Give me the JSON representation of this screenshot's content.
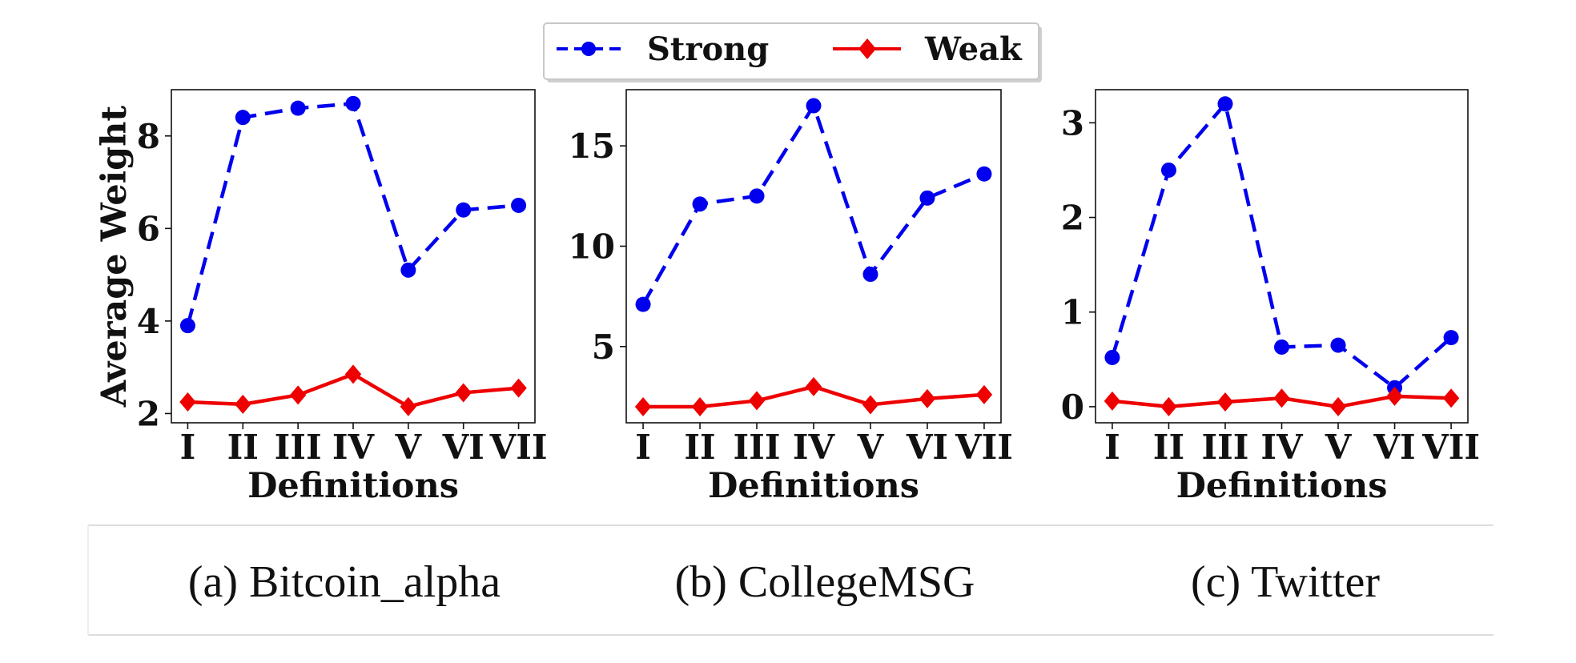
{
  "legend": [
    {
      "name": "Strong",
      "color": "#0000ee",
      "marker": "circle",
      "line": "dashed"
    },
    {
      "name": "Weak",
      "color": "#ee0000",
      "marker": "diamond",
      "line": "solid"
    }
  ],
  "chart_data": [
    {
      "type": "line",
      "caption": "(a) Bitcoin_alpha",
      "xlabel": "Definitions",
      "ylabel": "Average Weight",
      "categories": [
        "I",
        "II",
        "III",
        "IV",
        "V",
        "VI",
        "VII"
      ],
      "ylim": [
        1.8,
        9.0
      ],
      "yticks": [
        2,
        4,
        6,
        8
      ],
      "series": [
        {
          "name": "Strong",
          "values": [
            3.9,
            8.4,
            8.6,
            8.7,
            5.1,
            6.4,
            6.5
          ]
        },
        {
          "name": "Weak",
          "values": [
            2.25,
            2.2,
            2.4,
            2.85,
            2.15,
            2.45,
            2.55
          ]
        }
      ]
    },
    {
      "type": "line",
      "caption": "(b) CollegeMSG",
      "xlabel": "Definitions",
      "ylabel": "",
      "categories": [
        "I",
        "II",
        "III",
        "IV",
        "V",
        "VI",
        "VII"
      ],
      "ylim": [
        1.2,
        17.8
      ],
      "yticks": [
        5,
        10,
        15
      ],
      "series": [
        {
          "name": "Strong",
          "values": [
            7.1,
            12.1,
            12.5,
            17.0,
            8.6,
            12.4,
            13.6
          ]
        },
        {
          "name": "Weak",
          "values": [
            2.0,
            2.0,
            2.3,
            3.0,
            2.1,
            2.4,
            2.6
          ]
        }
      ]
    },
    {
      "type": "line",
      "caption": "(c) Twitter",
      "xlabel": "Definitions",
      "ylabel": "",
      "categories": [
        "I",
        "II",
        "III",
        "IV",
        "V",
        "VI",
        "VII"
      ],
      "ylim": [
        -0.17,
        3.35
      ],
      "yticks": [
        0,
        1,
        2,
        3
      ],
      "series": [
        {
          "name": "Strong",
          "values": [
            0.52,
            2.5,
            3.2,
            0.63,
            0.65,
            0.2,
            0.73
          ]
        },
        {
          "name": "Weak",
          "values": [
            0.06,
            0.0,
            0.05,
            0.09,
            0.0,
            0.11,
            0.09
          ]
        }
      ]
    }
  ]
}
